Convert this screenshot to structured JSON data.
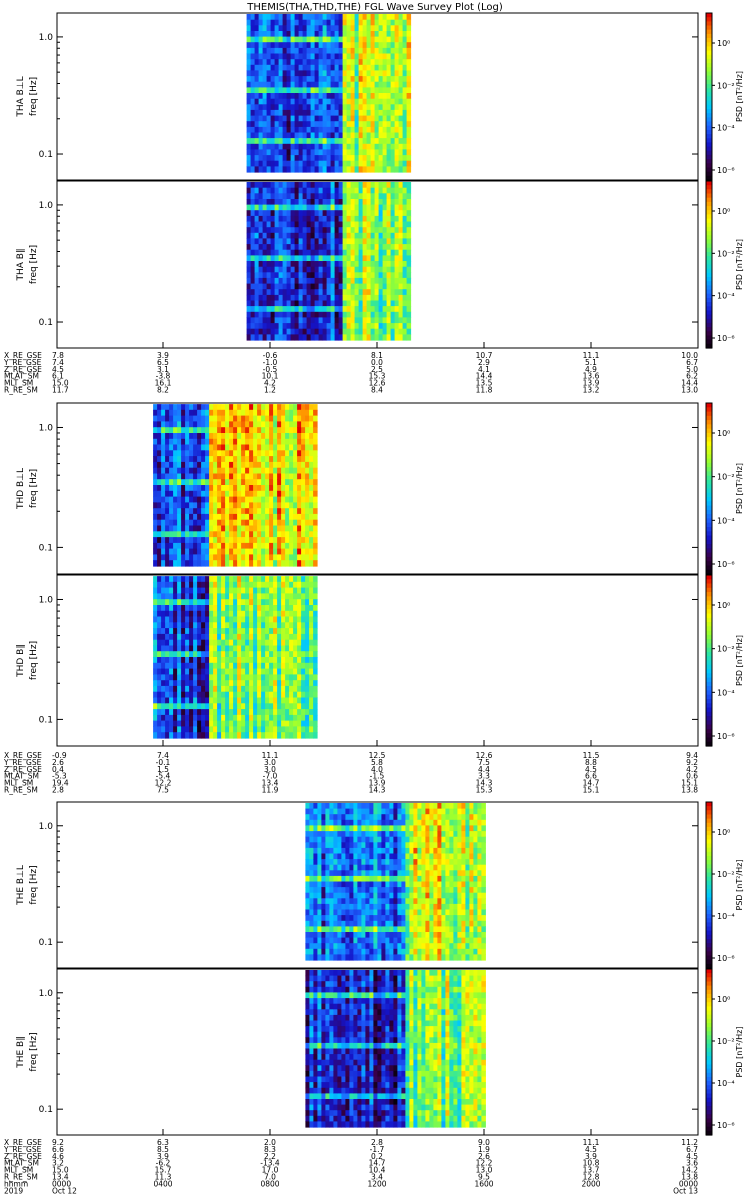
{
  "title": "THEMIS(THA,THD,THE) FGL Wave Survey Plot (Log)",
  "cbar_label": "PSD [nT²/Hz]",
  "cbar_ticks": [
    "10⁰",
    "10⁻²",
    "10⁻⁴",
    "10⁻⁶"
  ],
  "colorscale": [
    "#000000",
    "#3a004a",
    "#1414c8",
    "#1e64ff",
    "#00c8ff",
    "#2ee6a0",
    "#96ff32",
    "#ffff00",
    "#ff9600",
    "#e10000"
  ],
  "chart_data": [
    {
      "type": "heatmap",
      "probe": "THA",
      "panels": [
        {
          "ylabel": "THA B⊥L",
          "ylabel2": "freq [Hz]",
          "yticks": [
            "1.0",
            "0.1"
          ],
          "ylim": [
            0.06,
            1.6
          ],
          "yscale": "log",
          "data_x": [
            7.1,
            13.1
          ],
          "lfq_until": 10.6,
          "lfq_level": 0.32,
          "hfq_level": 0.72
        },
        {
          "ylabel": "THA B∥",
          "ylabel2": "freq [Hz]",
          "yticks": [
            "1.0",
            "0.1"
          ],
          "ylim": [
            0.06,
            1.6
          ],
          "yscale": "log",
          "data_x": [
            7.1,
            13.1
          ],
          "lfq_until": 10.6,
          "lfq_level": 0.28,
          "hfq_level": 0.66
        }
      ],
      "ephem_labels": [
        "X_RE_GSE",
        "Y_RE_GSE",
        "Z_RE_GSE",
        "MLAT_SM",
        "MLT_SM",
        "R_RE_SM"
      ],
      "ephem_values": [
        [
          "7.8",
          "3.9",
          "-0.6",
          "8.1",
          "10.7",
          "11.1",
          "10.0"
        ],
        [
          "7.4",
          "6.5",
          "-1.0",
          "0.0",
          "2.9",
          "5.1",
          "6.7"
        ],
        [
          "4.5",
          "3.1",
          "-0.5",
          "2.5",
          "4.1",
          "4.9",
          "5.0"
        ],
        [
          "6.1",
          "-3.8",
          "10.1",
          "15.3",
          "14.4",
          "13.6",
          "6.2"
        ],
        [
          "15.0",
          "16.1",
          "4.2",
          "12.6",
          "13.5",
          "13.9",
          "14.4"
        ],
        [
          "11.7",
          "8.2",
          "1.2",
          "8.4",
          "11.8",
          "13.2",
          "13.0"
        ]
      ],
      "xaxis": null
    },
    {
      "type": "heatmap",
      "probe": "THD",
      "panels": [
        {
          "ylabel": "THD B⊥L",
          "ylabel2": "freq [Hz]",
          "yticks": [
            "1.0",
            "0.1"
          ],
          "ylim": [
            0.06,
            1.6
          ],
          "yscale": "log",
          "data_x": [
            3.6,
            9.7
          ],
          "lfq_until": 5.6,
          "lfq_level": 0.3,
          "hfq_level": 0.8
        },
        {
          "ylabel": "THD B∥",
          "ylabel2": "freq [Hz]",
          "yticks": [
            "1.0",
            "0.1"
          ],
          "ylim": [
            0.06,
            1.6
          ],
          "yscale": "log",
          "data_x": [
            3.6,
            9.7
          ],
          "lfq_until": 5.6,
          "lfq_level": 0.3,
          "hfq_level": 0.66
        }
      ],
      "ephem_labels": [
        "X_RE_GSE",
        "Y_RE_GSE",
        "Z_RE_GSE",
        "MLAT_SM",
        "MLT_SM",
        "R_RE_SM"
      ],
      "ephem_values": [
        [
          "-0.9",
          "7.4",
          "11.1",
          "12.5",
          "12.6",
          "11.5",
          "9.4"
        ],
        [
          "2.6",
          "-0.1",
          "3.0",
          "5.8",
          "7.5",
          "8.8",
          "9.2"
        ],
        [
          "0.4",
          "1.5",
          "3.0",
          "4.0",
          "4.4",
          "4.5",
          "4.2"
        ],
        [
          "-5.3",
          "-5.4",
          "-7.0",
          "-1.5",
          "3.3",
          "6.6",
          "0.6"
        ],
        [
          "19.4",
          "12.2",
          "13.4",
          "13.9",
          "14.3",
          "14.7",
          "15.1"
        ],
        [
          "2.8",
          "7.5",
          "11.9",
          "14.3",
          "15.3",
          "15.1",
          "13.8"
        ]
      ],
      "xaxis": null
    },
    {
      "type": "heatmap",
      "probe": "THE",
      "panels": [
        {
          "ylabel": "THE B⊥L",
          "ylabel2": "freq [Hz]",
          "yticks": [
            "1.0",
            "0.1"
          ],
          "ylim": [
            0.06,
            1.6
          ],
          "yscale": "log",
          "data_x": [
            9.3,
            16.0
          ],
          "lfq_until": 12.9,
          "lfq_level": 0.36,
          "hfq_level": 0.74
        },
        {
          "ylabel": "THE B∥",
          "ylabel2": "freq [Hz]",
          "yticks": [
            "1.0",
            "0.1"
          ],
          "ylim": [
            0.06,
            1.6
          ],
          "yscale": "log",
          "data_x": [
            9.3,
            16.0
          ],
          "lfq_until": 12.9,
          "lfq_level": 0.26,
          "hfq_level": 0.66
        }
      ],
      "ephem_labels": [
        "X_RE_GSE",
        "Y_RE_GSE",
        "Z_RE_GSE",
        "MLAT_SM",
        "MLT_SM",
        "R_RE_SM",
        "hhmm",
        "2019"
      ],
      "ephem_values": [
        [
          "9.2",
          "6.3",
          "2.0",
          "2.8",
          "9.0",
          "11.1",
          "11.2"
        ],
        [
          "6.6",
          "8.5",
          "8.3",
          "-1.7",
          "1.9",
          "4.5",
          "6.7"
        ],
        [
          "4.6",
          "3.9",
          "2.2",
          "0.2",
          "2.6",
          "3.9",
          "4.5"
        ],
        [
          "3.2",
          "-6.2",
          "-13.4",
          "14.7",
          "12.2",
          "10.8",
          "3.6"
        ],
        [
          "15.0",
          "15.7",
          "17.0",
          "10.4",
          "13.0",
          "13.7",
          "14.2"
        ],
        [
          "13.4",
          "11.3",
          "7.0",
          "3.4",
          "9.5",
          "12.8",
          "13.8"
        ],
        [
          "0000",
          "0400",
          "0800",
          "1200",
          "1600",
          "2000",
          "0000"
        ],
        [
          "Oct 12",
          "",
          "",
          "",
          "",
          "",
          "Oct 13"
        ]
      ],
      "xaxis": {
        "label": "hhmm",
        "ticks": [
          "0000",
          "0400",
          "0800",
          "1200",
          "1600",
          "2000",
          "0000"
        ]
      }
    }
  ]
}
